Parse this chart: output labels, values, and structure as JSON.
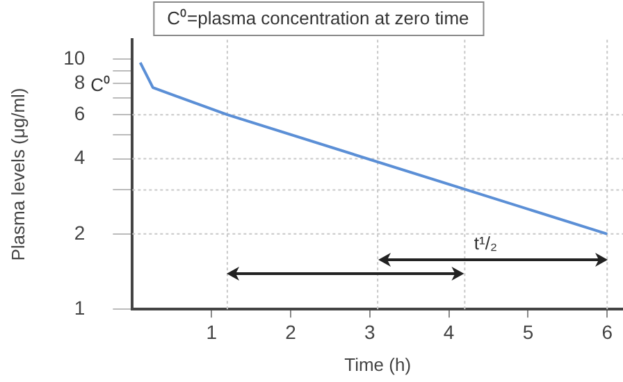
{
  "chart_data": {
    "type": "line",
    "xlabel": "Time (h)",
    "ylabel": "Plasma levels (μg/ml)",
    "x": [
      0.1,
      0.26,
      1.2,
      6
    ],
    "series": [
      {
        "color": "#5b8fd6",
        "values": [
          9.7,
          7.7,
          6,
          2
        ]
      }
    ],
    "log": "y",
    "xlim": [
      0,
      6.2
    ],
    "ylim": [
      1,
      12
    ],
    "xticks": [
      1,
      2,
      3,
      4,
      5,
      6
    ],
    "yticks": [
      1,
      2,
      {
        "value": 3,
        "label": null
      },
      4,
      {
        "value": 5,
        "label": null
      },
      6,
      {
        "value": 7,
        "label": null
      },
      8,
      {
        "value": 9,
        "label": null
      },
      10
    ],
    "grid": false,
    "legend": false,
    "marker": "none",
    "line_style": "solid",
    "ref_lines": [
      {
        "axis": "y",
        "value": 6,
        "color": "#c8c8c8",
        "line_style": "dotted"
      },
      {
        "axis": "y",
        "value": 4,
        "color": "#c8c8c8",
        "line_style": "dotted"
      },
      {
        "axis": "y",
        "value": 3,
        "color": "#c8c8c8",
        "line_style": "dotted"
      },
      {
        "axis": "y",
        "value": 2,
        "color": "#c8c8c8",
        "line_style": "dotted"
      },
      {
        "axis": "x",
        "value": 1.2,
        "color": "#c8c8c8",
        "line_style": "dotted"
      },
      {
        "axis": "x",
        "value": 3.1,
        "color": "#c8c8c8",
        "line_style": "dotted"
      },
      {
        "axis": "x",
        "value": 4.2,
        "color": "#c8c8c8",
        "line_style": "dotted"
      },
      {
        "axis": "x",
        "value": 6,
        "color": "#c8c8c8",
        "line_style": "dotted"
      }
    ],
    "annotations": [
      "C⁰=plasma concentration at zero time",
      "C⁰",
      "t¹/₂"
    ]
  }
}
